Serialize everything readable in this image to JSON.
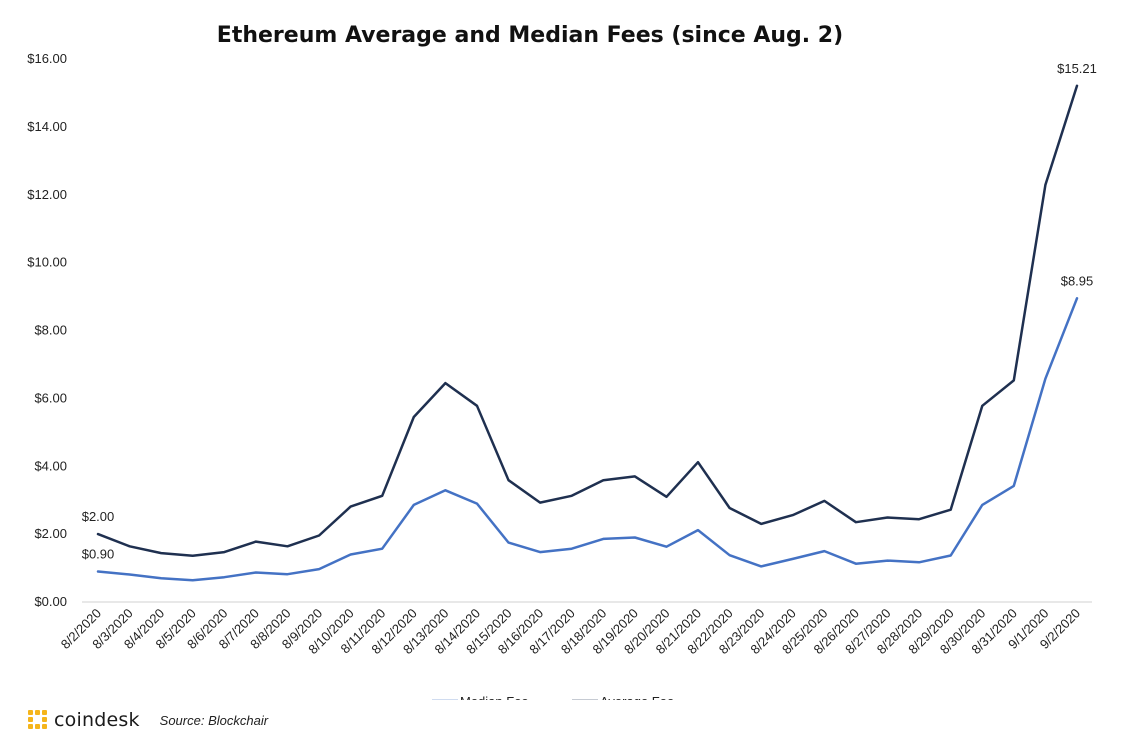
{
  "chart_data": {
    "type": "line",
    "title": "Ethereum Average and Median Fees (since Aug. 2)",
    "xlabel": "",
    "ylabel": "",
    "categories": [
      "8/2/2020",
      "8/3/2020",
      "8/4/2020",
      "8/5/2020",
      "8/6/2020",
      "8/7/2020",
      "8/8/2020",
      "8/9/2020",
      "8/10/2020",
      "8/11/2020",
      "8/12/2020",
      "8/13/2020",
      "8/14/2020",
      "8/15/2020",
      "8/16/2020",
      "8/17/2020",
      "8/18/2020",
      "8/19/2020",
      "8/20/2020",
      "8/21/2020",
      "8/22/2020",
      "8/23/2020",
      "8/24/2020",
      "8/25/2020",
      "8/26/2020",
      "8/27/2020",
      "8/28/2020",
      "8/29/2020",
      "8/30/2020",
      "8/31/2020",
      "9/1/2020",
      "9/2/2020"
    ],
    "ylim": [
      0,
      16
    ],
    "yticks": [
      0,
      2,
      4,
      6,
      8,
      10,
      12,
      14,
      16
    ],
    "ytick_labels": [
      "$0.00",
      "$2.00",
      "$4.00",
      "$6.00",
      "$8.00",
      "$10.00",
      "$12.00",
      "$14.00",
      "$16.00"
    ],
    "grid": false,
    "legend": "bottom",
    "series": [
      {
        "name": "Median Fee",
        "color": "#4472c4",
        "values": [
          0.9,
          0.81,
          0.7,
          0.64,
          0.73,
          0.87,
          0.82,
          0.97,
          1.4,
          1.57,
          2.86,
          3.29,
          2.9,
          1.75,
          1.47,
          1.57,
          1.86,
          1.9,
          1.63,
          2.12,
          1.38,
          1.05,
          1.27,
          1.5,
          1.13,
          1.22,
          1.17,
          1.37,
          2.86,
          3.42,
          6.58,
          8.95
        ]
      },
      {
        "name": "Average Fee",
        "color": "#1f3050",
        "values": [
          2.0,
          1.64,
          1.44,
          1.36,
          1.47,
          1.78,
          1.64,
          1.96,
          2.81,
          3.13,
          5.45,
          6.45,
          5.78,
          3.59,
          2.93,
          3.13,
          3.59,
          3.7,
          3.1,
          4.12,
          2.77,
          2.3,
          2.56,
          2.98,
          2.35,
          2.49,
          2.44,
          2.72,
          5.78,
          6.53,
          12.29,
          15.21
        ]
      }
    ],
    "data_labels": [
      {
        "series": 1,
        "index": 0,
        "text": "$2.00"
      },
      {
        "series": 0,
        "index": 0,
        "text": "$0.90"
      },
      {
        "series": 1,
        "index": 31,
        "text": "$15.21"
      },
      {
        "series": 0,
        "index": 31,
        "text": "$8.95"
      }
    ]
  },
  "footer": {
    "brand": "coindesk",
    "logo_icon": "coindesk-logo-icon",
    "logo_color": "#f5b51b",
    "source": "Source: Blockchair"
  }
}
